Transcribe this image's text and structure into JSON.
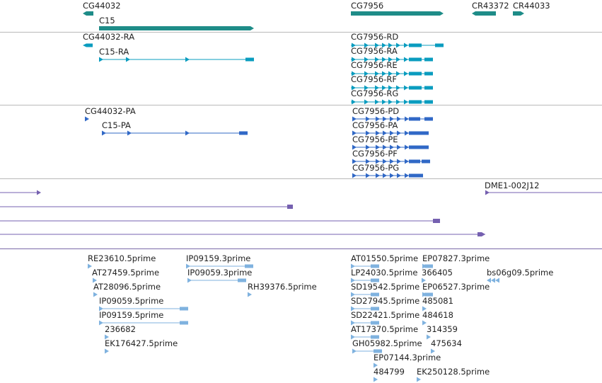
{
  "colors": {
    "gene": "#1e8c88",
    "transcript": "#0a9cbf",
    "protein": "#3068c6",
    "clone": "#7560b0",
    "est": "#7fb2df"
  },
  "genes": [
    {
      "label": "CG44032",
      "strand": "-"
    },
    {
      "label": "C15",
      "strand": "+"
    },
    {
      "label": "CG7956",
      "strand": "+"
    },
    {
      "label": "CR43372",
      "strand": "-"
    },
    {
      "label": "CR44033",
      "strand": "+"
    }
  ],
  "transcripts": [
    {
      "label": "CG44032-RA"
    },
    {
      "label": "C15-RA"
    },
    {
      "label": "CG7956-RD"
    },
    {
      "label": "CG7956-RA"
    },
    {
      "label": "CG7956-RE"
    },
    {
      "label": "CG7956-RF"
    },
    {
      "label": "CG7956-RG"
    }
  ],
  "proteins": [
    {
      "label": "CG44032-PA"
    },
    {
      "label": "C15-PA"
    },
    {
      "label": "CG7956-PD"
    },
    {
      "label": "CG7956-PA"
    },
    {
      "label": "CG7956-PE"
    },
    {
      "label": "CG7956-PF"
    },
    {
      "label": "CG7956-PG"
    }
  ],
  "clones": [
    {
      "label": "DME1-002J12"
    }
  ],
  "ests": [
    {
      "label": "RE23610.5prime"
    },
    {
      "label": "AT27459.5prime"
    },
    {
      "label": "AT28096.5prime"
    },
    {
      "label": "IP09059.5prime"
    },
    {
      "label": "IP09159.5prime"
    },
    {
      "label": "236682"
    },
    {
      "label": "EK176427.5prime"
    },
    {
      "label": "IP09159.3prime"
    },
    {
      "label": "IP09059.3prime"
    },
    {
      "label": "RH39376.5prime"
    },
    {
      "label": "AT01550.5prime"
    },
    {
      "label": "LP24030.5prime"
    },
    {
      "label": "SD19542.5prime"
    },
    {
      "label": "SD27945.5prime"
    },
    {
      "label": "SD22421.5prime"
    },
    {
      "label": "AT17370.5prime"
    },
    {
      "label": "GH05982.5prime"
    },
    {
      "label": "EP07144.3prime"
    },
    {
      "label": "484799"
    },
    {
      "label": "EP07827.3prime"
    },
    {
      "label": "366405"
    },
    {
      "label": "EP06527.3prime"
    },
    {
      "label": "485081"
    },
    {
      "label": "484618"
    },
    {
      "label": "314359"
    },
    {
      "label": "475634"
    },
    {
      "label": "EK250128.5prime"
    },
    {
      "label": "bs06g09.5prime"
    }
  ]
}
